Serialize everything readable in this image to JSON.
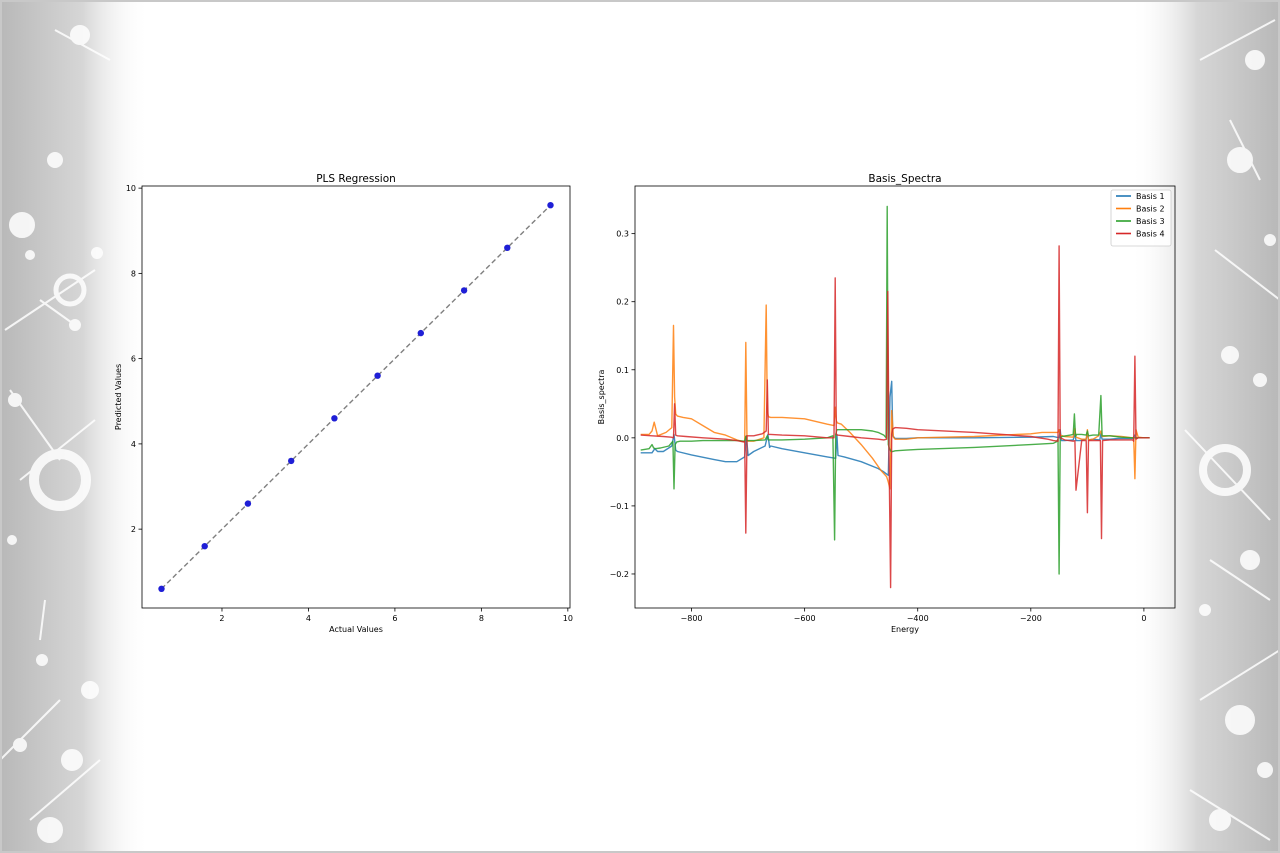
{
  "colors": {
    "frame": "#c8c8c8",
    "page_bg": "#ffffff",
    "decor_gray": "#d2d2d2",
    "axis": "#000000",
    "scatter_points": "#1f1fd6",
    "fit_line": "#7f7f7f"
  },
  "decoration": {
    "style": "grayscale splatter / molecule-network borders on left and right edges",
    "icon": "molecule-splatter-decoration"
  },
  "chart_data": [
    {
      "type": "scatter",
      "title": "PLS Regression",
      "xlabel": "Actual Values",
      "ylabel": "Predicted Values",
      "xlim": [
        0.15,
        10.05
      ],
      "ylim": [
        0.15,
        10.05
      ],
      "xticks": [
        2,
        4,
        6,
        8,
        10
      ],
      "yticks": [
        2,
        4,
        6,
        8,
        10
      ],
      "grid": false,
      "series": [
        {
          "kind": "points",
          "x": [
            0.6,
            1.6,
            2.6,
            3.6,
            4.6,
            5.6,
            6.6,
            7.6,
            8.6,
            9.6
          ],
          "y": [
            0.6,
            1.6,
            2.6,
            3.6,
            4.6,
            5.6,
            6.6,
            7.6,
            8.6,
            9.6
          ],
          "color": "#1f1fd6"
        },
        {
          "kind": "line",
          "style": "dashed",
          "x": [
            0.6,
            9.6
          ],
          "y": [
            0.6,
            9.6
          ],
          "color": "#7f7f7f"
        }
      ]
    },
    {
      "type": "line",
      "title": "Basis_Spectra",
      "xlabel": "Energy",
      "ylabel": "Basis_spectra",
      "xlim": [
        -900,
        55
      ],
      "ylim": [
        -0.25,
        0.37
      ],
      "xticks": [
        -800,
        -600,
        -400,
        -200,
        0
      ],
      "xtick_labels": [
        "−800",
        "−600",
        "−400",
        "−200",
        "0"
      ],
      "yticks": [
        -0.2,
        -0.1,
        0.0,
        0.1,
        0.2,
        0.3
      ],
      "ytick_labels": [
        "−0.2",
        "−0.1",
        "0.0",
        "0.1",
        "0.2",
        "0.3"
      ],
      "grid": false,
      "legend_position": "top-right",
      "series": [
        {
          "name": "Basis 1",
          "color": "#1f77b4",
          "x": [
            -890,
            -870,
            -865,
            -860,
            -850,
            -835,
            -831,
            -828,
            -825,
            -800,
            -760,
            -740,
            -720,
            -706,
            -703,
            -700,
            -690,
            -670,
            -665,
            -662,
            -660,
            -640,
            -600,
            -560,
            -545,
            -543,
            -541,
            -530,
            -500,
            -470,
            -460,
            -452,
            -449,
            -446,
            -444,
            -440,
            -420,
            -400,
            -300,
            -200,
            -160,
            -150,
            -148,
            -146,
            -140,
            -125,
            -122,
            -120,
            -112,
            -102,
            -100,
            -98,
            -90,
            -78,
            -76,
            -74,
            -60,
            -45,
            -20,
            -16,
            -14,
            -10,
            0,
            10
          ],
          "y": [
            -0.022,
            -0.022,
            -0.016,
            -0.02,
            -0.02,
            -0.012,
            0.005,
            -0.018,
            -0.02,
            -0.025,
            -0.032,
            -0.035,
            -0.035,
            -0.028,
            0.003,
            -0.026,
            -0.02,
            -0.012,
            0.005,
            -0.014,
            -0.012,
            -0.016,
            -0.022,
            -0.028,
            -0.03,
            0.005,
            -0.026,
            -0.028,
            -0.035,
            -0.045,
            -0.05,
            -0.055,
            0.06,
            0.083,
            0.003,
            -0.001,
            -0.001,
            0.0,
            0.0,
            0.001,
            0.002,
            0.0,
            0.012,
            -0.004,
            -0.004,
            -0.003,
            0.006,
            -0.004,
            -0.004,
            -0.002,
            0.008,
            -0.003,
            -0.002,
            -0.003,
            0.006,
            -0.002,
            -0.002,
            -0.001,
            -0.001,
            0.004,
            -0.001,
            0.0,
            0.0,
            0.0
          ]
        },
        {
          "name": "Basis 2",
          "color": "#ff7f0e",
          "x": [
            -890,
            -875,
            -870,
            -866,
            -860,
            -845,
            -835,
            -832,
            -830,
            -828,
            -825,
            -815,
            -800,
            -780,
            -760,
            -740,
            -720,
            -706,
            -704,
            -702,
            -700,
            -690,
            -672,
            -668,
            -666,
            -664,
            -660,
            -640,
            -600,
            -560,
            -548,
            -546,
            -544,
            -542,
            -535,
            -520,
            -500,
            -480,
            -465,
            -455,
            -452,
            -449,
            -446,
            -443,
            -440,
            -420,
            -400,
            -300,
            -200,
            -180,
            -160,
            -152,
            -150,
            -148,
            -140,
            -125,
            -122,
            -120,
            -110,
            -102,
            -100,
            -98,
            -90,
            -80,
            -76,
            -74,
            -60,
            -40,
            -20,
            -18,
            -16,
            -14,
            -10,
            0,
            10
          ],
          "y": [
            0.005,
            0.005,
            0.01,
            0.023,
            0.003,
            0.008,
            0.015,
            0.165,
            0.06,
            0.035,
            0.032,
            0.03,
            0.028,
            0.018,
            0.008,
            0.004,
            -0.003,
            -0.006,
            0.14,
            -0.004,
            -0.005,
            -0.005,
            0.0,
            0.195,
            0.038,
            0.031,
            0.03,
            0.03,
            0.028,
            0.02,
            0.018,
            0.045,
            0.025,
            0.022,
            0.02,
            0.008,
            -0.01,
            -0.03,
            -0.048,
            -0.057,
            -0.065,
            -0.075,
            0.04,
            0.001,
            -0.002,
            -0.002,
            0.0,
            0.002,
            0.006,
            0.008,
            0.008,
            0.008,
            0.012,
            0.004,
            0.002,
            0.001,
            0.014,
            0.001,
            -0.002,
            -0.002,
            0.012,
            -0.003,
            -0.002,
            0.003,
            0.01,
            0.002,
            0.003,
            0.002,
            0.0,
            0.0,
            -0.06,
            0.012,
            0.001,
            0.0,
            0.0
          ]
        },
        {
          "name": "Basis 3",
          "color": "#2ca02c",
          "x": [
            -890,
            -875,
            -870,
            -867,
            -864,
            -855,
            -840,
            -833,
            -831,
            -829,
            -826,
            -820,
            -800,
            -780,
            -760,
            -740,
            -720,
            -706,
            -704,
            -702,
            -700,
            -690,
            -670,
            -666,
            -664,
            -662,
            -660,
            -640,
            -600,
            -560,
            -550,
            -547,
            -545,
            -543,
            -540,
            -520,
            -500,
            -480,
            -470,
            -460,
            -456,
            -454,
            -452,
            -450,
            -447,
            -444,
            -440,
            -420,
            -400,
            -300,
            -200,
            -160,
            -155,
            -152,
            -150,
            -148,
            -145,
            -130,
            -125,
            -123,
            -121,
            -119,
            -110,
            -102,
            -100,
            -98,
            -90,
            -80,
            -76,
            -74,
            -72,
            -60,
            -50,
            -40,
            -20,
            -10,
            0,
            10
          ],
          "y": [
            -0.018,
            -0.016,
            -0.01,
            -0.015,
            -0.016,
            -0.015,
            -0.012,
            -0.005,
            -0.075,
            -0.01,
            -0.006,
            -0.005,
            -0.005,
            -0.004,
            -0.004,
            -0.004,
            -0.004,
            -0.005,
            0.002,
            -0.004,
            -0.004,
            -0.004,
            -0.003,
            0.003,
            -0.003,
            -0.003,
            -0.003,
            -0.003,
            -0.002,
            0.0,
            0.003,
            -0.15,
            0.005,
            0.012,
            0.012,
            0.012,
            0.012,
            0.01,
            0.008,
            0.004,
            0.0,
            0.34,
            -0.01,
            -0.016,
            -0.02,
            -0.02,
            -0.019,
            -0.018,
            -0.017,
            -0.014,
            -0.01,
            -0.008,
            -0.006,
            -0.002,
            -0.2,
            0.0,
            0.002,
            0.004,
            0.005,
            0.035,
            0.002,
            0.005,
            0.005,
            0.004,
            0.01,
            0.003,
            0.004,
            0.004,
            0.062,
            0.003,
            0.003,
            0.003,
            0.002,
            0.001,
            0.0,
            0.0,
            0.0,
            0.0
          ]
        },
        {
          "name": "Basis 4",
          "color": "#d62728",
          "x": [
            -890,
            -870,
            -850,
            -836,
            -832,
            -830,
            -828,
            -825,
            -810,
            -780,
            -740,
            -720,
            -708,
            -706,
            -704,
            -702,
            -700,
            -690,
            -675,
            -668,
            -666,
            -664,
            -660,
            -640,
            -600,
            -560,
            -548,
            -546,
            -544,
            -542,
            -520,
            -500,
            -470,
            -460,
            -455,
            -453,
            -451,
            -448,
            -446,
            -444,
            -440,
            -420,
            -400,
            -300,
            -200,
            -170,
            -160,
            -152,
            -150,
            -148,
            -140,
            -125,
            -122,
            -120,
            -110,
            -102,
            -100,
            -98,
            -90,
            -80,
            -77,
            -75,
            -73,
            -60,
            -40,
            -20,
            -18,
            -16,
            -14,
            -10,
            0,
            10
          ],
          "y": [
            0.004,
            0.003,
            0.002,
            0.001,
            0.0,
            0.05,
            0.004,
            0.003,
            0.002,
            0.0,
            -0.002,
            -0.004,
            -0.006,
            -0.005,
            -0.14,
            0.003,
            0.003,
            0.003,
            0.006,
            0.01,
            0.085,
            0.005,
            0.005,
            0.004,
            0.003,
            0.0,
            0.0,
            0.235,
            0.005,
            0.004,
            0.002,
            0.0,
            -0.002,
            -0.003,
            -0.002,
            0.215,
            -0.004,
            -0.22,
            0.005,
            0.013,
            0.015,
            0.014,
            0.012,
            0.008,
            0.002,
            -0.002,
            -0.004,
            -0.005,
            0.282,
            0.0,
            -0.003,
            -0.005,
            -0.004,
            -0.077,
            -0.004,
            -0.004,
            -0.11,
            -0.004,
            -0.004,
            -0.004,
            -0.004,
            -0.148,
            -0.004,
            -0.003,
            -0.003,
            -0.003,
            -0.005,
            0.12,
            -0.002,
            0.0,
            0.0,
            0.0
          ]
        }
      ]
    }
  ]
}
